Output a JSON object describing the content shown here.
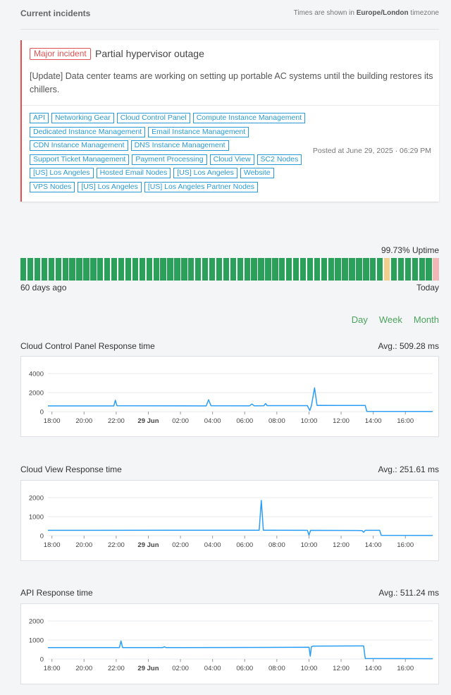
{
  "header": {
    "title": "Current incidents",
    "timezone_prefix": "Times are shown in",
    "timezone": "Europe/London",
    "timezone_suffix": "timezone"
  },
  "incident": {
    "badge": "Major incident",
    "title": "Partial hypervisor outage",
    "update": "[Update] Data center teams are working on setting up portable AC systems until the building restores its chillers.",
    "tag_rows": [
      [
        "API",
        "Networking Gear",
        "Cloud Control Panel",
        "Compute Instance Management"
      ],
      [
        "Dedicated Instance Management",
        "Email Instance Management"
      ],
      [
        "CDN Instance Management",
        "DNS Instance Management"
      ],
      [
        "Support Ticket Management",
        "Payment Processing",
        "Cloud View",
        "SC2 Nodes"
      ],
      [
        "[US] Los Angeles",
        "Hosted Email Nodes",
        "[US] Los Angeles",
        "Website"
      ],
      [
        "VPS Nodes",
        "[US] Los Angeles",
        "[US] Los Angeles Partner Nodes"
      ]
    ],
    "posted": "Posted at June 29, 2025 · 06:29 PM"
  },
  "uptime": {
    "label": "99.73% Uptime",
    "start_label": "60 days ago",
    "end_label": "Today",
    "colors": {
      "ok": "#2aa05a",
      "partial": "#f0cf8c",
      "outage": "#f2b8b8"
    },
    "days": [
      "ok",
      "ok",
      "ok",
      "ok",
      "ok",
      "ok",
      "ok",
      "ok",
      "ok",
      "ok",
      "ok",
      "ok",
      "ok",
      "ok",
      "ok",
      "ok",
      "ok",
      "ok",
      "ok",
      "ok",
      "ok",
      "ok",
      "ok",
      "ok",
      "ok",
      "ok",
      "ok",
      "ok",
      "ok",
      "ok",
      "ok",
      "ok",
      "ok",
      "ok",
      "ok",
      "ok",
      "ok",
      "ok",
      "ok",
      "ok",
      "ok",
      "ok",
      "ok",
      "ok",
      "ok",
      "ok",
      "ok",
      "ok",
      "ok",
      "ok",
      "ok",
      "ok",
      "partial",
      "ok",
      "ok",
      "ok",
      "ok",
      "ok",
      "ok",
      "outage"
    ]
  },
  "ranges": [
    "Day",
    "Week",
    "Month"
  ],
  "chart_data": [
    {
      "type": "line",
      "title": "Cloud Control Panel Response time",
      "avg": "Avg.: 509.28 ms",
      "ylim": [
        0,
        4000
      ],
      "yticks": [
        0,
        2000,
        4000
      ],
      "ytick_labels": [
        "0",
        "2000",
        "4000"
      ],
      "xlim": [
        17.75,
        41.7
      ],
      "xticks": [
        18,
        20,
        22,
        24,
        26,
        28,
        30,
        32,
        34,
        36,
        38,
        40
      ],
      "xtick_labels": [
        "18:00",
        "20:00",
        "22:00",
        "29 Jun",
        "02:00",
        "04:00",
        "06:00",
        "08:00",
        "10:00",
        "12:00",
        "14:00",
        "16:00"
      ],
      "color": "#2a9df4",
      "x": [
        17.75,
        21.85,
        21.95,
        22.05,
        27.6,
        27.75,
        27.9,
        30.3,
        30.45,
        30.6,
        31.2,
        31.3,
        31.4,
        33.9,
        34.05,
        34.15,
        34.35,
        34.5,
        34.65,
        35.8,
        37.5,
        37.6,
        41.7
      ],
      "y": [
        600,
        600,
        1200,
        620,
        600,
        1250,
        620,
        610,
        800,
        610,
        620,
        850,
        630,
        630,
        120,
        620,
        2500,
        650,
        660,
        650,
        650,
        30,
        20
      ]
    },
    {
      "type": "line",
      "title": "Cloud View Response time",
      "avg": "Avg.: 251.61 ms",
      "ylim": [
        0,
        2000
      ],
      "yticks": [
        0,
        1000,
        2000
      ],
      "ytick_labels": [
        "0",
        "1000",
        "2000"
      ],
      "xlim": [
        17.75,
        41.7
      ],
      "xticks": [
        18,
        20,
        22,
        24,
        26,
        28,
        30,
        32,
        34,
        36,
        38,
        40
      ],
      "xtick_labels": [
        "18:00",
        "20:00",
        "22:00",
        "29 Jun",
        "02:00",
        "04:00",
        "06:00",
        "08:00",
        "10:00",
        "12:00",
        "14:00",
        "16:00"
      ],
      "color": "#2a9df4",
      "x": [
        17.75,
        30.9,
        31.03,
        31.16,
        33.9,
        34.0,
        34.1,
        37.3,
        37.4,
        37.5,
        38.4,
        38.5,
        41.7
      ],
      "y": [
        280,
        290,
        1850,
        290,
        280,
        30,
        280,
        270,
        180,
        280,
        280,
        20,
        15
      ]
    },
    {
      "type": "line",
      "title": "API Response time",
      "avg": "Avg.: 511.24 ms",
      "ylim": [
        0,
        2000
      ],
      "yticks": [
        0,
        1000,
        2000
      ],
      "ytick_labels": [
        "0",
        "1000",
        "2000"
      ],
      "xlim": [
        17.75,
        41.7
      ],
      "xticks": [
        18,
        20,
        22,
        24,
        26,
        28,
        30,
        32,
        34,
        36,
        38,
        40
      ],
      "xtick_labels": [
        "18:00",
        "20:00",
        "22:00",
        "29 Jun",
        "02:00",
        "04:00",
        "06:00",
        "08:00",
        "10:00",
        "12:00",
        "14:00",
        "16:00"
      ],
      "color": "#2a9df4",
      "x": [
        17.75,
        22.2,
        22.3,
        22.4,
        24.9,
        25.0,
        25.1,
        34.0,
        34.08,
        34.15,
        34.25,
        37.4,
        37.5,
        41.7
      ],
      "y": [
        600,
        600,
        950,
        600,
        600,
        650,
        600,
        620,
        150,
        650,
        680,
        690,
        30,
        20
      ]
    }
  ]
}
